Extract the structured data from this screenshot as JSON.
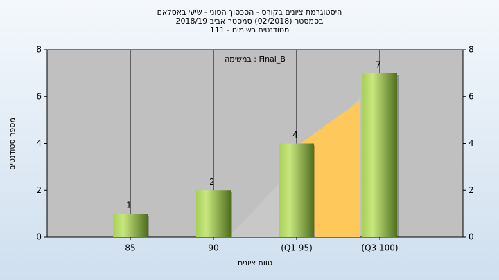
{
  "chart_data": {
    "type": "bar",
    "title": [
      "היסטוגרמת ציונים בקורס - הסכסוך הסוני - שיעי באסלאם",
      "בסמסטר  (02/2018)  סמסטר אביב 2018/19",
      "סטודנטים רשומים - 111"
    ],
    "annotation": "במשימה : Final_B",
    "x_label": "טווח ציונים",
    "y_label": "מספר סטודנטים",
    "categories": [
      "85",
      "90",
      "(Q1 95)",
      "(Q3 100)"
    ],
    "values": [
      1,
      2,
      4,
      7
    ],
    "color": "#9cc34a",
    "ylim": [
      0,
      8
    ],
    "yticks": [
      0,
      2,
      4,
      6,
      8
    ],
    "grid": true
  }
}
